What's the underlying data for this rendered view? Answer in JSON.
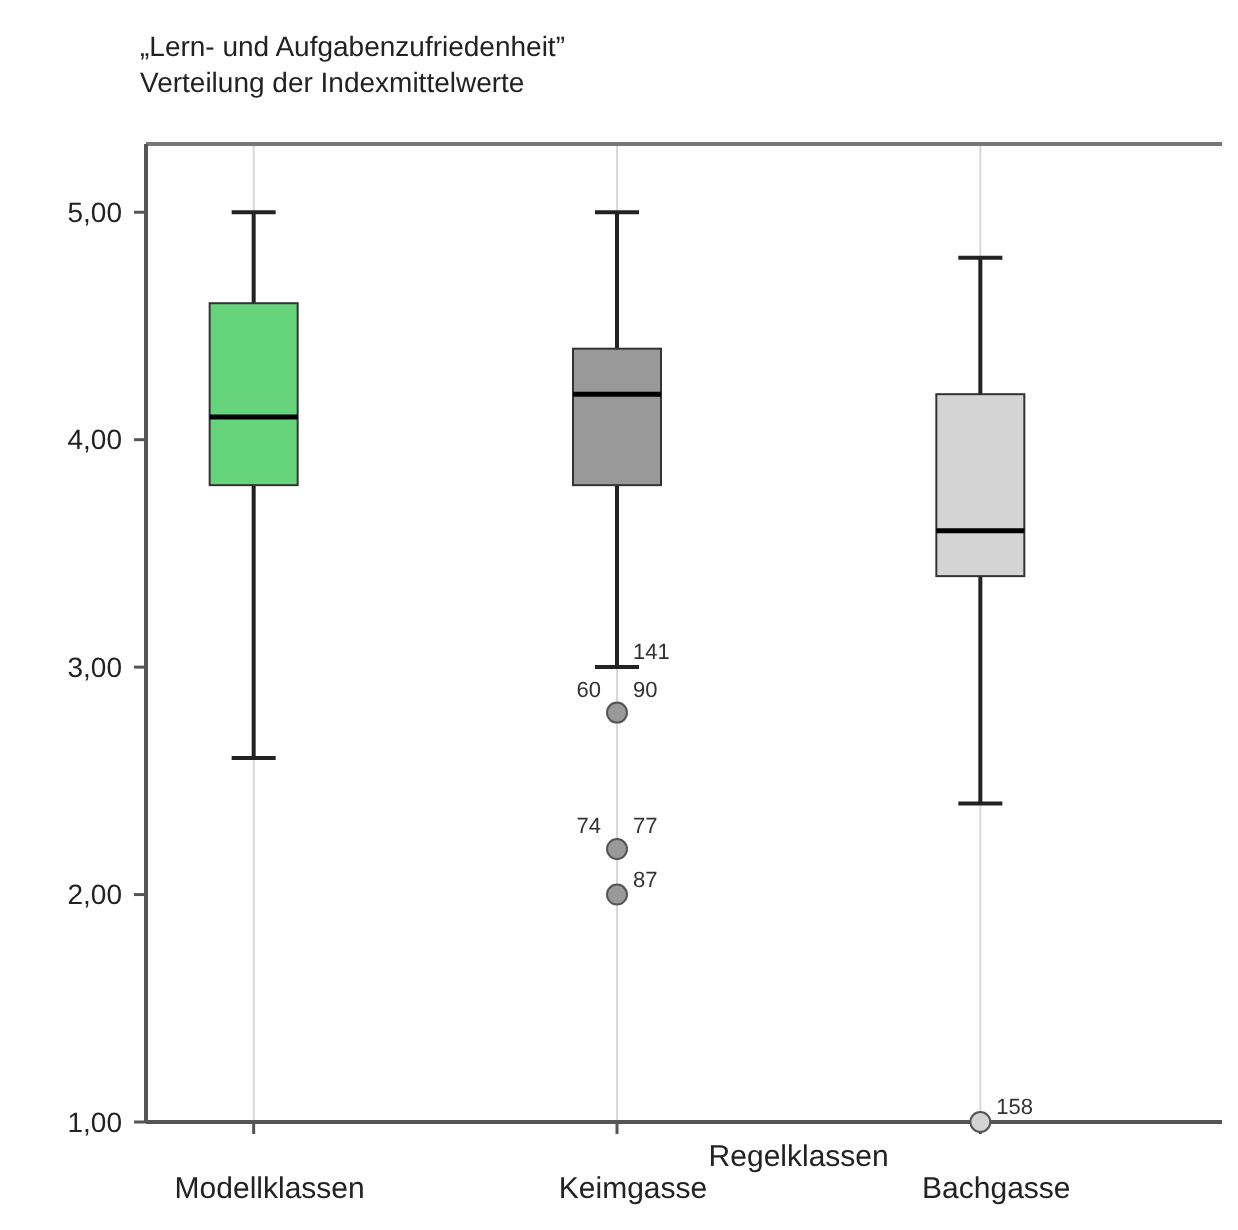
{
  "chart_data": {
    "type": "box",
    "title": "„Lern- und Aufgabenzufriedenheit”",
    "subtitle": "Verteilung der Indexmittelwerte",
    "categories": [
      "Modellklassen",
      "Keimgasse",
      "Bachgasse"
    ],
    "colors": [
      "#66d47a",
      "#999999",
      "#d4d4d4"
    ],
    "boxes": [
      {
        "low": 2.6,
        "q1": 3.8,
        "median": 4.1,
        "q3": 4.6,
        "high": 5.0
      },
      {
        "low": 3.0,
        "q1": 3.8,
        "median": 4.2,
        "q3": 4.4,
        "high": 5.0
      },
      {
        "low": 2.4,
        "q1": 3.4,
        "median": 3.6,
        "q3": 4.2,
        "high": 4.8
      }
    ],
    "series": [
      {
        "type": "scatter",
        "x": [
          "Keimgasse",
          "Keimgasse",
          "Keimgasse",
          "Bachgasse"
        ],
        "values": [
          2.8,
          2.2,
          2.0,
          1.0
        ],
        "colors": [
          "#999999",
          "#999999",
          "#999999",
          "#d4d4d4"
        ]
      }
    ],
    "ylim": [
      1,
      5.3
    ],
    "yticks": [
      {
        "value": 1,
        "label": "1,00"
      },
      {
        "value": 2,
        "label": "2,00"
      },
      {
        "value": 3,
        "label": "3,00"
      },
      {
        "value": 4,
        "label": "4,00"
      },
      {
        "value": 5,
        "label": "5,00"
      }
    ],
    "grid": "x",
    "annotations": [
      {
        "text": "141",
        "x": "Keimgasse",
        "y": 3.0
      },
      {
        "text": "60",
        "x": "Keimgasse",
        "y": 2.8
      },
      {
        "text": "90",
        "x": "Keimgasse",
        "y": 2.8
      },
      {
        "text": "74",
        "x": "Keimgasse",
        "y": 2.2
      },
      {
        "text": "77",
        "x": "Keimgasse",
        "y": 2.2
      },
      {
        "text": "87",
        "x": "Keimgasse",
        "y": 2.0
      },
      {
        "text": "158",
        "x": "Bachgasse",
        "y": 1.0
      },
      "Regelklassen"
    ]
  }
}
